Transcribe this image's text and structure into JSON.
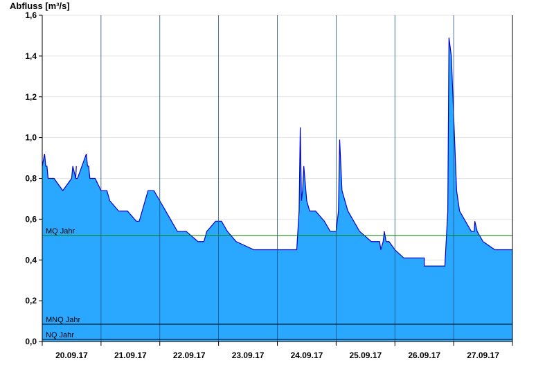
{
  "chart_data": {
    "type": "area",
    "ylabel": "Abfluss [m³/s]",
    "xlabel": "",
    "ylim": [
      0,
      1.6
    ],
    "yticks": [
      0,
      0.2,
      0.4,
      0.6,
      0.8,
      1.0,
      1.2,
      1.4,
      1.6
    ],
    "ytick_labels": [
      "0,0",
      "0,2",
      "0,4",
      "0,6",
      "0,8",
      "1,0",
      "1,2",
      "1,4",
      "1,6"
    ],
    "xlim": [
      0,
      8
    ],
    "x_unit": "days since 20.09.17 00:00",
    "xtick_labels": [
      "20.09.17",
      "21.09.17",
      "22.09.17",
      "23.09.17",
      "24.09.17",
      "25.09.17",
      "26.09.17",
      "27.09.17"
    ],
    "fill_color": "#2aa8ff",
    "line_color": "#0000cc",
    "grid": "horizontal",
    "series": [
      {
        "name": "Abfluss",
        "x": [
          0,
          0.04,
          0.06,
          0.08,
          0.1,
          0.2,
          0.35,
          0.5,
          0.52,
          0.5,
          0.52,
          0.57,
          0.58,
          0.57,
          0.6,
          0.75,
          0.77,
          0.79,
          0.81,
          0.9,
          1.0,
          1.1,
          1.15,
          1.3,
          1.45,
          1.6,
          1.65,
          1.75,
          1.8,
          1.9,
          2.0,
          2.1,
          2.2,
          2.3,
          2.45,
          2.65,
          2.75,
          2.8,
          2.95,
          3.05,
          3.15,
          3.3,
          3.6,
          4.0,
          4.33,
          4.37,
          4.39,
          4.41,
          4.43,
          4.45,
          4.5,
          4.55,
          4.6,
          4.65,
          4.8,
          4.9,
          5.0,
          5.04,
          5.06,
          5.1,
          5.2,
          5.3,
          5.4,
          5.6,
          5.74,
          5.76,
          5.8,
          5.82,
          5.85,
          5.9,
          6.0,
          6.15,
          6.5,
          6.5,
          6.85,
          6.9,
          6.92,
          6.96,
          7.05,
          7.1,
          7.2,
          7.3,
          7.35,
          7.36,
          7.4,
          7.5,
          7.7,
          8.0
        ],
        "y": [
          0.86,
          0.92,
          0.86,
          0.86,
          0.8,
          0.8,
          0.74,
          0.8,
          0.86,
          0.8,
          0.86,
          0.8,
          0.86,
          0.8,
          0.8,
          0.92,
          0.86,
          0.86,
          0.8,
          0.8,
          0.74,
          0.74,
          0.69,
          0.64,
          0.64,
          0.59,
          0.59,
          0.69,
          0.74,
          0.74,
          0.69,
          0.64,
          0.59,
          0.54,
          0.54,
          0.49,
          0.49,
          0.54,
          0.59,
          0.59,
          0.54,
          0.49,
          0.45,
          0.45,
          0.45,
          0.64,
          1.05,
          0.69,
          0.74,
          0.86,
          0.69,
          0.64,
          0.64,
          0.64,
          0.59,
          0.54,
          0.54,
          0.64,
          0.99,
          0.74,
          0.64,
          0.59,
          0.54,
          0.49,
          0.49,
          0.45,
          0.49,
          0.54,
          0.49,
          0.49,
          0.45,
          0.41,
          0.41,
          0.37,
          0.37,
          0.64,
          1.49,
          1.4,
          0.74,
          0.64,
          0.59,
          0.54,
          0.54,
          0.59,
          0.54,
          0.49,
          0.45,
          0.45
        ]
      }
    ],
    "reference_lines": [
      {
        "label": "MQ Jahr",
        "value": 0.52,
        "color": "#008000"
      },
      {
        "label": "MNQ Jahr",
        "value": 0.085,
        "color": "#000000"
      },
      {
        "label": "NQ Jahr",
        "value": 0.01,
        "color": "#000000"
      }
    ]
  }
}
